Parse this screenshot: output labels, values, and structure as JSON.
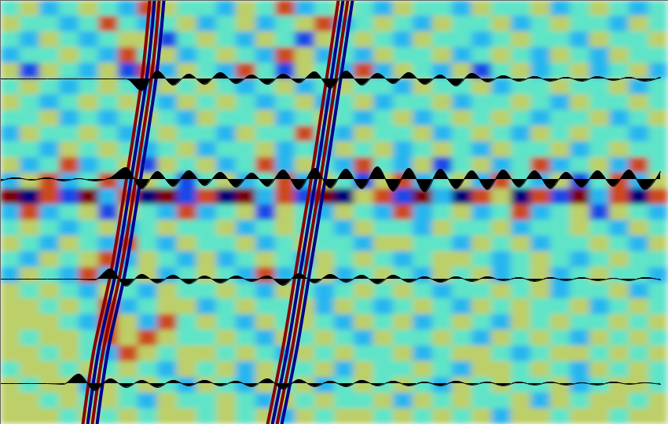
{
  "chart_data": {
    "type": "heatmap",
    "tick_labels": false,
    "xlim": [
      0,
      85
    ],
    "ylim": [
      0,
      54
    ],
    "xticks": [],
    "yticks": [],
    "zlim": [
      -3,
      3
    ],
    "cells": {
      "x_edges": [
        0,
        2.5,
        5,
        7.5,
        10,
        12.5,
        15,
        17.5,
        20,
        22.5,
        25,
        27.5,
        30,
        32.5,
        35,
        37.5,
        40,
        42.5,
        45,
        47.5,
        50,
        52.5,
        55,
        57.5,
        60,
        62.5,
        65,
        67.5,
        70,
        72.5,
        75,
        77.5,
        80,
        82.5,
        85
      ],
      "y_edges": [
        0,
        2,
        4,
        6,
        8,
        10,
        12,
        14,
        16,
        18,
        20,
        22,
        24,
        26,
        28,
        30,
        32,
        34,
        36,
        38,
        40,
        42,
        44,
        46,
        48,
        50,
        52,
        54
      ],
      "z": [
        [
          0,
          1,
          -1,
          0,
          1,
          0,
          -1,
          2,
          1,
          0,
          0,
          -1,
          1,
          0,
          2,
          -1,
          0,
          1,
          0,
          -1,
          1,
          0,
          0,
          -1,
          1,
          0,
          0,
          1,
          -1,
          0,
          1,
          0,
          -1,
          0
        ],
        [
          1,
          0,
          0,
          -1,
          0,
          2,
          0,
          -1,
          0,
          1,
          -1,
          0,
          1,
          -1,
          0,
          1,
          2,
          -1,
          0,
          1,
          0,
          -1,
          1,
          0,
          0,
          1,
          -1,
          0,
          1,
          0,
          0,
          -1,
          1,
          0
        ],
        [
          0,
          -1,
          1,
          0,
          -1,
          0,
          1,
          1,
          -2,
          0,
          1,
          0,
          -1,
          1,
          0,
          -2,
          1,
          0,
          1,
          0,
          -1,
          1,
          0,
          0,
          -1,
          0,
          1,
          0,
          0,
          -1,
          1,
          0,
          0,
          1
        ],
        [
          -1,
          0,
          0,
          1,
          0,
          -1,
          2,
          0,
          1,
          -1,
          0,
          1,
          0,
          -1,
          2,
          1,
          -1,
          0,
          -1,
          1,
          0,
          0,
          1,
          -1,
          0,
          1,
          0,
          -1,
          1,
          0,
          -1,
          1,
          0,
          0
        ],
        [
          1,
          -2,
          1,
          0,
          -1,
          1,
          -2,
          2,
          -1,
          1,
          0,
          -1,
          2,
          0,
          -2,
          1,
          0,
          -1,
          2,
          -1,
          1,
          0,
          -1,
          1,
          -2,
          0,
          1,
          -1,
          0,
          1,
          -1,
          0,
          1,
          -1
        ],
        [
          0,
          1,
          0,
          -1,
          0,
          1,
          0,
          -1,
          1,
          0,
          1,
          0,
          -1,
          0,
          1,
          -1,
          0,
          1,
          0,
          0,
          -1,
          1,
          0,
          0,
          1,
          -1,
          0,
          0,
          1,
          0,
          0,
          1,
          -1,
          0
        ],
        [
          1,
          0,
          -1,
          0,
          1,
          0,
          1,
          0,
          -1,
          1,
          0,
          1,
          0,
          -1,
          0,
          1,
          -1,
          0,
          1,
          -1,
          0,
          0,
          1,
          -1,
          0,
          0,
          1,
          0,
          -1,
          1,
          0,
          0,
          1,
          0
        ],
        [
          0,
          0,
          1,
          -1,
          0,
          -1,
          0,
          1,
          0,
          -1,
          1,
          0,
          0,
          1,
          -1,
          0,
          1,
          0,
          -1,
          0,
          1,
          -1,
          0,
          1,
          0,
          1,
          0,
          -1,
          0,
          0,
          1,
          -1,
          0,
          1
        ],
        [
          -1,
          1,
          0,
          0,
          1,
          0,
          -1,
          0,
          1,
          0,
          0,
          -1,
          1,
          0,
          0,
          2,
          0,
          -1,
          1,
          0,
          0,
          1,
          -1,
          0,
          1,
          0,
          -1,
          1,
          0,
          1,
          0,
          0,
          -1,
          0
        ],
        [
          0,
          0,
          -1,
          1,
          0,
          1,
          0,
          -1,
          0,
          1,
          -1,
          0,
          0,
          1,
          -1,
          0,
          -1,
          1,
          0,
          1,
          -1,
          0,
          1,
          0,
          -1,
          1,
          0,
          0,
          1,
          -1,
          0,
          1,
          0,
          0
        ],
        [
          1,
          -1,
          0,
          2,
          -1,
          0,
          1,
          -2,
          1,
          0,
          1,
          -1,
          0,
          2,
          -1,
          1,
          0,
          -1,
          2,
          0,
          -1,
          1,
          -2,
          0,
          1,
          -1,
          0,
          2,
          -1,
          0,
          1,
          -1,
          2,
          0
        ],
        [
          -1,
          1,
          2,
          -1,
          0,
          2,
          -1,
          1,
          0,
          -2,
          0,
          1,
          -1,
          0,
          2,
          -1,
          1,
          0,
          -2,
          1,
          2,
          -1,
          0,
          1,
          -1,
          2,
          0,
          -1,
          1,
          -2,
          0,
          2,
          -1,
          1
        ],
        [
          3,
          -3,
          2,
          -2,
          3,
          -1,
          2,
          -3,
          3,
          -2,
          2,
          -3,
          3,
          -1,
          2,
          -2,
          3,
          -3,
          1,
          2,
          -2,
          3,
          -1,
          -3,
          2,
          1,
          -3,
          2,
          -2,
          3,
          -1,
          2,
          -3,
          2
        ],
        [
          -1,
          2,
          -1,
          0,
          1,
          -2,
          1,
          0,
          -1,
          2,
          -1,
          0,
          1,
          -2,
          1,
          0,
          -1,
          1,
          0,
          -1,
          2,
          -1,
          0,
          1,
          -1,
          0,
          2,
          -1,
          0,
          1,
          -2,
          1,
          0,
          -1
        ],
        [
          0,
          1,
          0,
          -1,
          0,
          1,
          -1,
          0,
          1,
          0,
          0,
          1,
          -1,
          0,
          1,
          0,
          0,
          -1,
          1,
          0,
          0,
          -1,
          1,
          0,
          0,
          1,
          -1,
          0,
          0,
          1,
          0,
          -1,
          1,
          0
        ],
        [
          1,
          0,
          -1,
          1,
          0,
          -1,
          2,
          0,
          -1,
          1,
          0,
          0,
          1,
          -1,
          0,
          1,
          0,
          0,
          -1,
          1,
          1,
          0,
          0,
          -1,
          1,
          0,
          1,
          -1,
          0,
          0,
          1,
          0,
          -1,
          1
        ],
        [
          0,
          -1,
          1,
          0,
          1,
          2,
          -1,
          1,
          0,
          -1,
          1,
          -1,
          0,
          1,
          0,
          -1,
          1,
          0,
          1,
          0,
          -1,
          0,
          1,
          1,
          0,
          -1,
          0,
          1,
          0,
          -1,
          0,
          1,
          0,
          0
        ],
        [
          -1,
          1,
          0,
          -1,
          2,
          -1,
          0,
          1,
          -1,
          0,
          1,
          0,
          -1,
          2,
          -1,
          0,
          1,
          -1,
          0,
          1,
          0,
          -1,
          1,
          0,
          1,
          -1,
          0,
          1,
          -1,
          0,
          1,
          0,
          0,
          -1
        ],
        [
          1,
          0,
          1,
          0,
          -1,
          1,
          0,
          -1,
          1,
          0,
          0,
          1,
          0,
          -1,
          1,
          0,
          -1,
          0,
          1,
          0,
          1,
          0,
          -1,
          0,
          0,
          1,
          0,
          1,
          -1,
          0,
          0,
          1,
          -1,
          0
        ],
        [
          1,
          1,
          0,
          1,
          0,
          2,
          -1,
          0,
          1,
          1,
          -1,
          0,
          1,
          0,
          0,
          1,
          -1,
          1,
          0,
          -1,
          0,
          1,
          0,
          -1,
          1,
          0,
          1,
          0,
          0,
          1,
          -1,
          0,
          1,
          0
        ],
        [
          1,
          1,
          1,
          0,
          -1,
          2,
          1,
          -1,
          2,
          0,
          1,
          0,
          -1,
          1,
          0,
          1,
          0,
          -1,
          1,
          0,
          1,
          -1,
          0,
          1,
          0,
          -1,
          1,
          0,
          1,
          0,
          0,
          1,
          0,
          1
        ],
        [
          1,
          0,
          1,
          1,
          0,
          2,
          1,
          2,
          1,
          0,
          0,
          1,
          0,
          -1,
          1,
          0,
          1,
          0,
          -1,
          1,
          0,
          0,
          1,
          0,
          -1,
          1,
          0,
          1,
          0,
          -1,
          1,
          0,
          1,
          0
        ],
        [
          1,
          1,
          0,
          1,
          0,
          -1,
          2,
          1,
          0,
          1,
          1,
          0,
          1,
          0,
          -1,
          1,
          0,
          1,
          0,
          0,
          1,
          -1,
          0,
          1,
          1,
          0,
          -1,
          0,
          1,
          1,
          0,
          1,
          0,
          1
        ],
        [
          0,
          1,
          1,
          0,
          1,
          0,
          1,
          0,
          -1,
          1,
          0,
          1,
          -1,
          1,
          0,
          0,
          1,
          -1,
          1,
          0,
          0,
          1,
          0,
          -1,
          1,
          1,
          0,
          1,
          0,
          -1,
          1,
          0,
          1,
          0
        ],
        [
          1,
          0,
          1,
          1,
          -1,
          1,
          0,
          1,
          0,
          -1,
          1,
          0,
          -1,
          1,
          0,
          1,
          -1,
          0,
          1,
          0,
          1,
          0,
          -1,
          1,
          0,
          1,
          0,
          0,
          1,
          -1,
          0,
          1,
          1,
          0
        ],
        [
          1,
          1,
          0,
          1,
          0,
          1,
          0,
          -1,
          1,
          0,
          0,
          1,
          0,
          -1,
          1,
          0,
          1,
          0,
          0,
          1,
          -1,
          1,
          0,
          1,
          0,
          0,
          1,
          -1,
          1,
          0,
          1,
          1,
          0,
          1
        ],
        [
          1,
          1,
          1,
          0,
          1,
          0,
          1,
          0,
          1,
          1,
          0,
          1,
          0,
          1,
          -1,
          1,
          0,
          1,
          1,
          0,
          1,
          0,
          1,
          0,
          1,
          -1,
          1,
          1,
          0,
          1,
          1,
          0,
          1,
          1
        ]
      ]
    },
    "event_y": [
      0,
      10,
      23,
      35,
      44,
      54
    ],
    "events": [
      {
        "color": "#8b0000",
        "x": [
          19,
          18,
          16,
          14,
          12,
          10.5
        ]
      },
      {
        "color": "#00008b",
        "x": [
          19.6,
          18.6,
          16.6,
          14.6,
          12.6,
          11.1
        ]
      },
      {
        "color": "#8b0000",
        "x": [
          20.2,
          19.2,
          17.2,
          15.2,
          13.2,
          11.7
        ]
      },
      {
        "color": "#00008b",
        "x": [
          20.8,
          19.8,
          17.8,
          15.8,
          13.8,
          12.3
        ]
      },
      {
        "color": "#8b0000",
        "x": [
          43,
          41.5,
          39.5,
          37.5,
          36,
          34
        ]
      },
      {
        "color": "#00008b",
        "x": [
          43.6,
          42.1,
          40.1,
          38.1,
          36.6,
          34.6
        ]
      },
      {
        "color": "#8b0000",
        "x": [
          44.2,
          42.7,
          40.7,
          38.7,
          37.2,
          35.2
        ]
      },
      {
        "color": "#00008b",
        "x": [
          44.8,
          43.3,
          41.3,
          39.3,
          37.8,
          35.8
        ]
      }
    ],
    "wiggle_x": [
      0,
      2,
      4,
      6,
      8,
      10,
      12,
      14,
      16,
      18,
      20,
      22,
      24,
      26,
      28,
      30,
      32,
      34,
      36,
      38,
      40,
      42,
      44,
      46,
      48,
      50,
      52,
      54,
      56,
      58,
      60,
      62,
      64,
      66,
      68,
      70,
      72,
      74,
      76,
      78,
      80,
      82,
      84
    ],
    "wiggles": [
      {
        "y": 10,
        "color": "#000000",
        "values": [
          0,
          0,
          0,
          0,
          0,
          0,
          0,
          0,
          0,
          1.5,
          -1,
          0.8,
          -0.6,
          0.7,
          -0.8,
          0.6,
          -0.5,
          0.7,
          -0.6,
          0.5,
          -0.9,
          1.2,
          -1,
          0.8,
          -0.7,
          0.6,
          -0.8,
          0.7,
          -0.5,
          0.9,
          -0.7,
          0.4,
          -0.4,
          0.3,
          -0.3,
          0.3,
          -0.2,
          0.3,
          -0.3,
          0.2,
          -0.2,
          0.3,
          -0.2
        ]
      },
      {
        "y": 22.8,
        "color": "#000000",
        "values": [
          0.2,
          -0.2,
          0.1,
          -0.2,
          0.2,
          -0.1,
          0.2,
          -0.2,
          -1.5,
          1.2,
          -1,
          0.9,
          -1.1,
          0.8,
          -0.9,
          1,
          -0.8,
          0.9,
          -1.2,
          1.3,
          -1.4,
          1.1,
          -1.3,
          1.2,
          -1.6,
          1.5,
          -1.4,
          1.6,
          -1.3,
          1.2,
          -1.1,
          1.3,
          -1.2,
          1,
          -1.1,
          1.2,
          -0.9,
          1,
          -1.1,
          0.9,
          -1.2,
          1.3,
          -1
        ]
      },
      {
        "y": 35.5,
        "color": "#000000",
        "values": [
          0,
          0,
          0,
          0,
          0,
          0,
          0.1,
          -1.3,
          0.9,
          -0.6,
          0.5,
          -0.5,
          0.6,
          -0.4,
          0.5,
          -0.4,
          0.3,
          -0.4,
          0.8,
          -0.7,
          0.5,
          -0.6,
          0.4,
          -0.5,
          0.6,
          -0.5,
          0.4,
          -0.3,
          0.4,
          -0.3,
          0.3,
          -0.3,
          0.2,
          -0.2,
          0.3,
          -0.2,
          0.2,
          -0.2,
          0.2,
          -0.1,
          0.2,
          -0.2,
          0.1
        ]
      },
      {
        "y": 48.8,
        "color": "#000000",
        "values": [
          0,
          0,
          0,
          0,
          0.1,
          -1.2,
          0.9,
          -0.6,
          0.5,
          -0.4,
          0.5,
          -0.4,
          0.3,
          -0.4,
          0.3,
          -0.3,
          0.4,
          -0.6,
          0.7,
          -0.5,
          0.4,
          -0.3,
          0.4,
          -0.4,
          0.3,
          -0.3,
          0.3,
          -0.2,
          0.3,
          -0.3,
          0.2,
          -0.2,
          0.3,
          -0.2,
          0.2,
          -0.2,
          0.2,
          -0.1,
          0.2,
          -0.2,
          0.1,
          -0.1,
          0.1
        ]
      }
    ]
  }
}
